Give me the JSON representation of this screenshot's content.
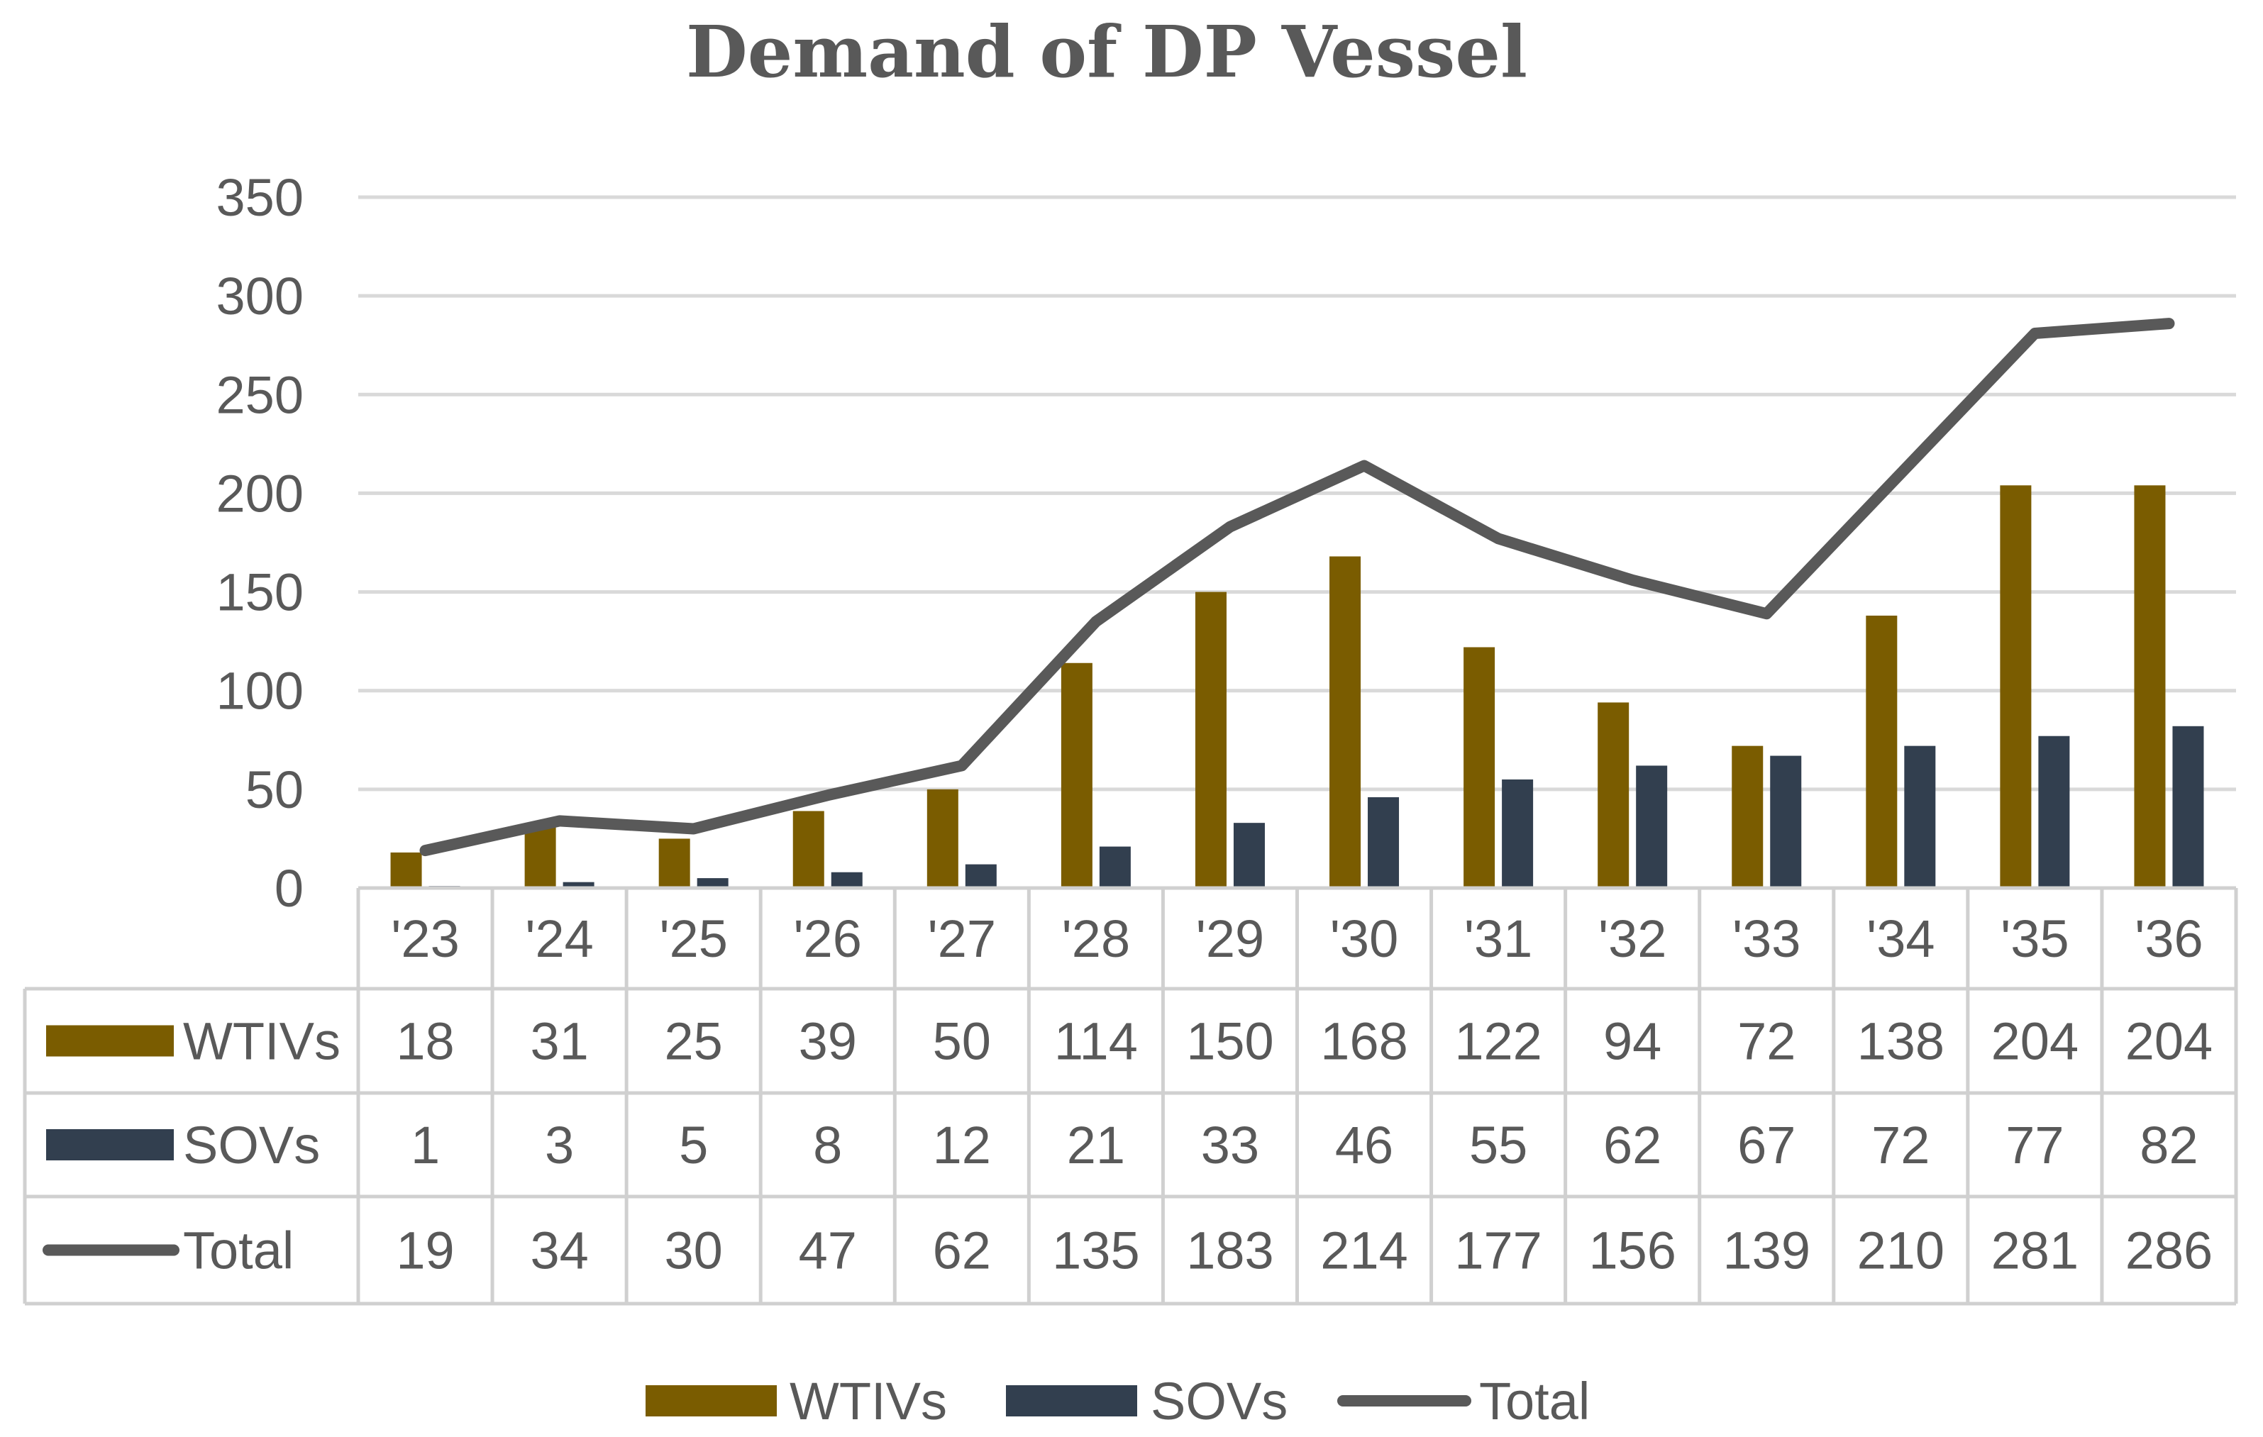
{
  "chart_data": {
    "type": "bar",
    "title": "Demand of DP Vessel",
    "categories": [
      "'23",
      "'24",
      "'25",
      "'26",
      "'27",
      "'28",
      "'29",
      "'30",
      "'31",
      "'32",
      "'33",
      "'34",
      "'35",
      "'36"
    ],
    "series": [
      {
        "name": "WTIVs",
        "kind": "bar",
        "color": "#7a5c00",
        "values": [
          18,
          31,
          25,
          39,
          50,
          114,
          150,
          168,
          122,
          94,
          72,
          138,
          204,
          204
        ]
      },
      {
        "name": "SOVs",
        "kind": "bar",
        "color": "#323f4f",
        "values": [
          1,
          3,
          5,
          8,
          12,
          21,
          33,
          46,
          55,
          62,
          67,
          72,
          77,
          82
        ]
      },
      {
        "name": "Total",
        "kind": "line",
        "color": "#595959",
        "values": [
          19,
          34,
          30,
          47,
          62,
          135,
          183,
          214,
          177,
          156,
          139,
          210,
          281,
          286
        ]
      }
    ],
    "y_ticks": [
      0,
      50,
      100,
      150,
      200,
      250,
      300,
      350
    ],
    "ylim": [
      0,
      350
    ],
    "grid": true,
    "data_table": true,
    "legend_position": "bottom",
    "xlabel": "",
    "ylabel": ""
  }
}
